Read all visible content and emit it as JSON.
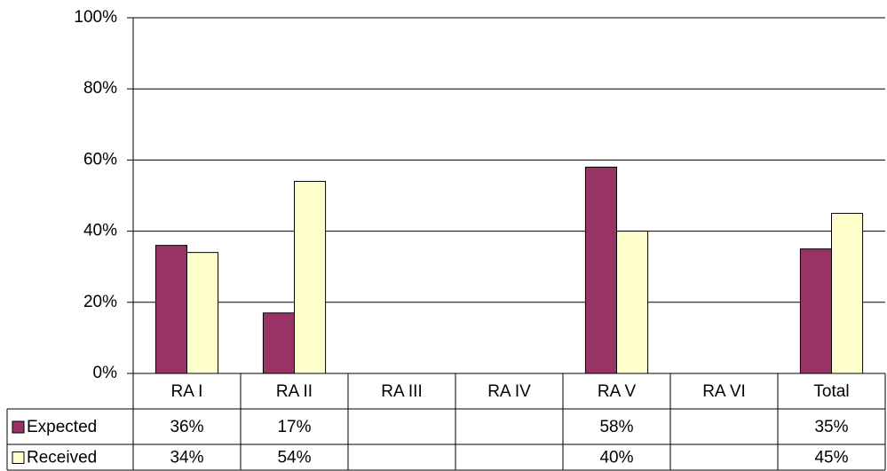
{
  "chart_data": {
    "type": "bar",
    "categories": [
      "RA I",
      "RA II",
      "RA III",
      "RA IV",
      "RA V",
      "RA VI",
      "Total"
    ],
    "series": [
      {
        "name": "Expected",
        "color": "#993366",
        "values": [
          36,
          17,
          null,
          null,
          58,
          null,
          35
        ],
        "value_labels": [
          "36%",
          "17%",
          null,
          null,
          "58%",
          null,
          "35%"
        ]
      },
      {
        "name": "Received",
        "color": "#ffffcc",
        "values": [
          34,
          54,
          null,
          null,
          40,
          null,
          45
        ],
        "value_labels": [
          "34%",
          "54%",
          null,
          null,
          "40%",
          null,
          "45%"
        ]
      }
    ],
    "ylim": [
      0,
      100
    ],
    "yticks": [
      {
        "value": 0,
        "label": "0%"
      },
      {
        "value": 20,
        "label": "20%"
      },
      {
        "value": 40,
        "label": "40%"
      },
      {
        "value": 60,
        "label": "60%"
      },
      {
        "value": 80,
        "label": "80%"
      },
      {
        "value": 100,
        "label": "100%"
      }
    ],
    "grid": true
  }
}
